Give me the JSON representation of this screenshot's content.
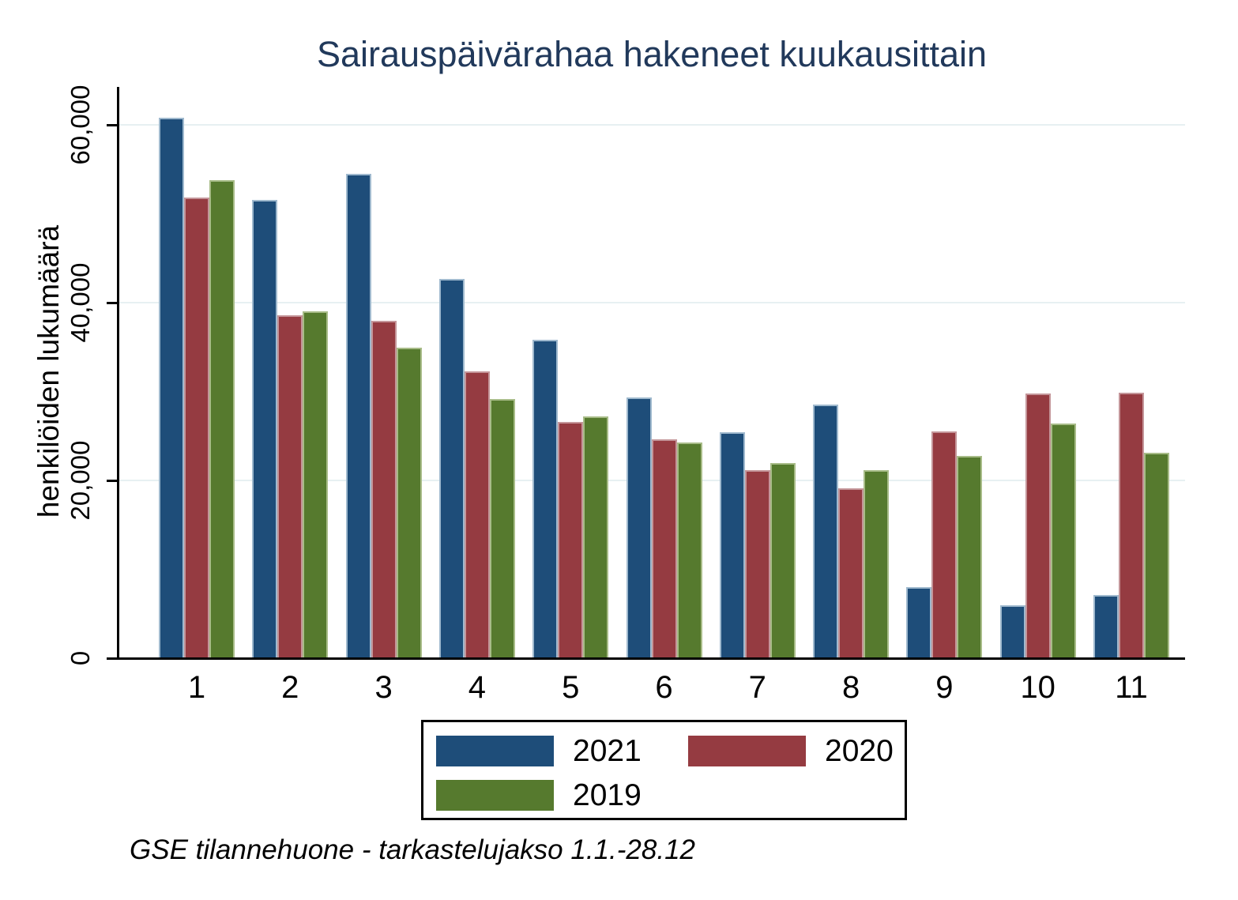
{
  "chart_data": {
    "type": "bar",
    "title": "Sairauspäivärahaa hakeneet kuukausittain",
    "ylabel": "henkilöiden lukumäärä",
    "xlabel": "",
    "categories": [
      "1",
      "2",
      "3",
      "4",
      "5",
      "6",
      "7",
      "8",
      "9",
      "10",
      "11"
    ],
    "series": [
      {
        "name": "2021",
        "color": "#1E4D79",
        "border_color": "#9FB9CE",
        "values": [
          60800,
          51600,
          54500,
          42700,
          35800,
          29300,
          25400,
          28500,
          8000,
          6000,
          7100
        ]
      },
      {
        "name": "2020",
        "color": "#953B41",
        "border_color": "#C49599",
        "values": [
          51800,
          38600,
          38000,
          32300,
          26600,
          24600,
          21200,
          19100,
          25500,
          29800,
          29900
        ]
      },
      {
        "name": "2019",
        "color": "#567A2E",
        "border_color": "#A8BC88",
        "values": [
          53800,
          39000,
          34900,
          29200,
          27200,
          24300,
          22000,
          21200,
          22800,
          26400,
          23100
        ]
      }
    ],
    "y_axis": {
      "ticks": [
        {
          "value": 0,
          "label": "0"
        },
        {
          "value": 20000,
          "label": "20,000"
        },
        {
          "value": 40000,
          "label": "40,000"
        },
        {
          "value": 60000,
          "label": "60,000"
        }
      ],
      "max": 64270,
      "grid": true
    },
    "legend": {
      "position": "bottom-center",
      "rows": [
        [
          "2021",
          "2020"
        ],
        [
          "2019"
        ]
      ]
    },
    "note": "GSE tilannehuone - tarkastelujakso 1.1.-28.12"
  },
  "colors": {
    "title": "#21395B",
    "gridline": "#E7F0F2",
    "axis": "#000000",
    "background": "#FFFFFF"
  }
}
